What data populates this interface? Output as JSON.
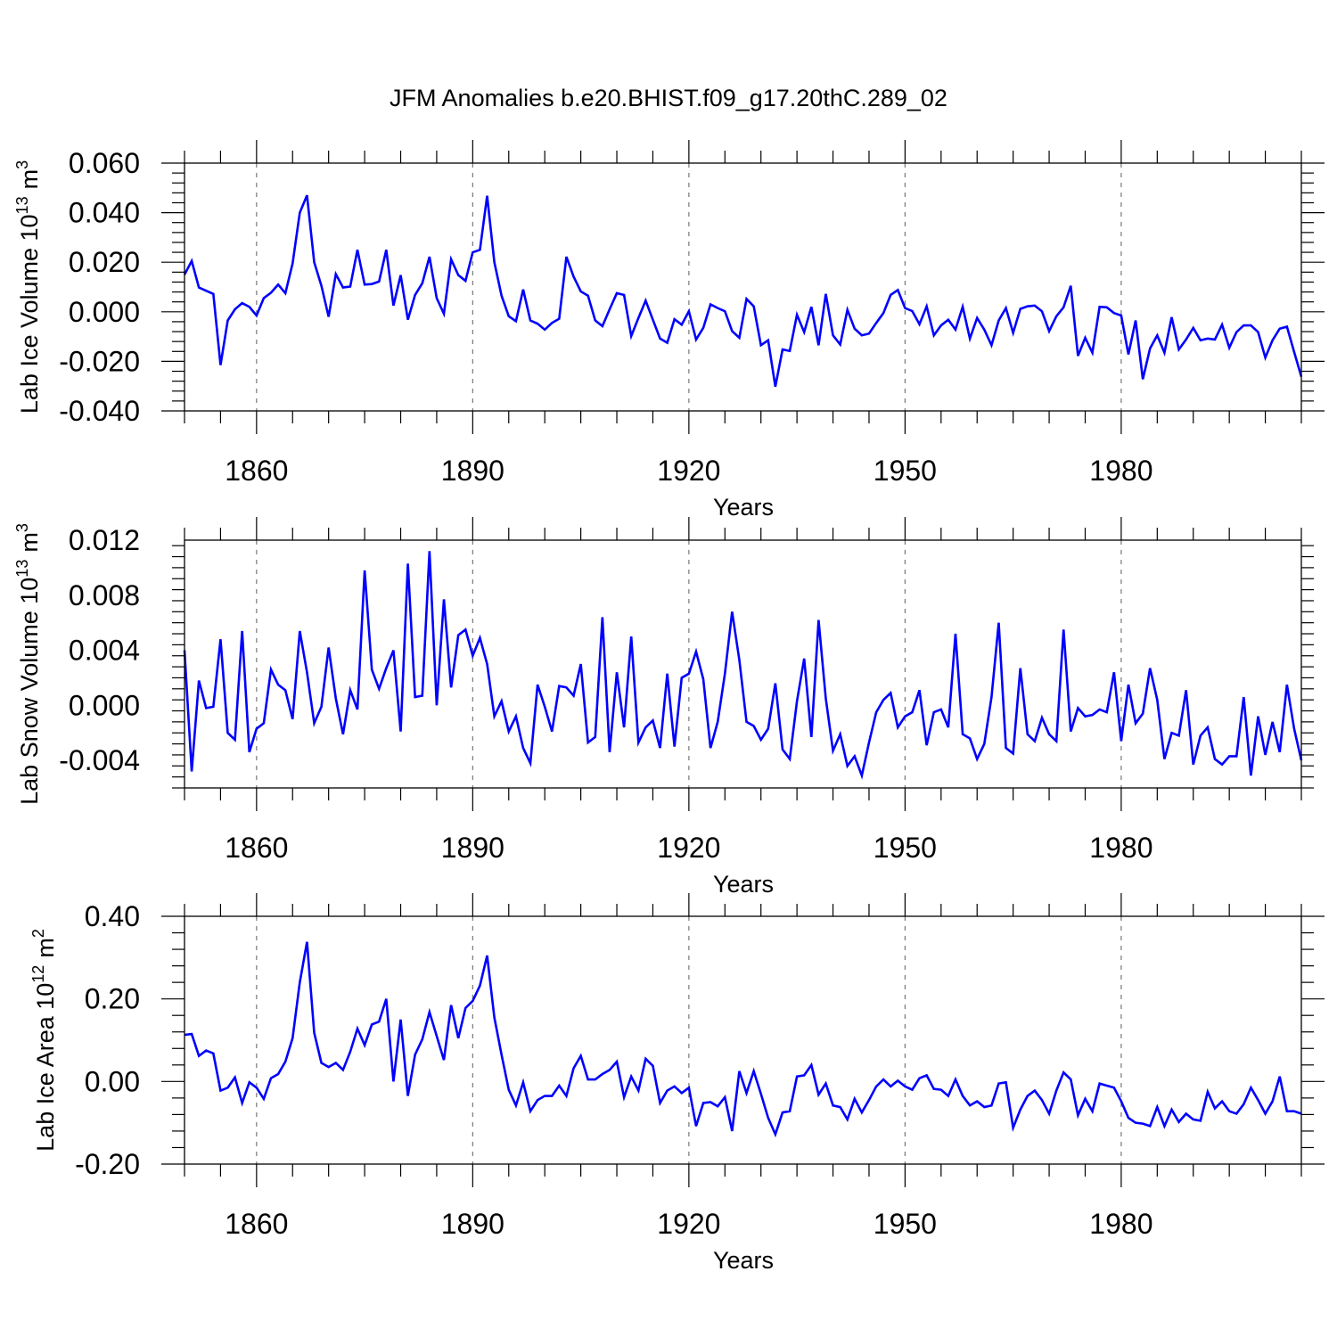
{
  "title": "JFM Anomalies b.e20.BHIST.f09_g17.20thC.289_02",
  "colors": {
    "line": "#0000ff",
    "axis": "#000000",
    "grid": "#777777"
  },
  "chart_data": [
    {
      "type": "line",
      "ylabel_main": "Lab Ice Volume 10",
      "ylabel_exp": "13",
      "ylabel_unit": "m",
      "ylabel_unit_exp": "3",
      "xlabel": "Years",
      "xlim": [
        1850,
        2005
      ],
      "ylim": [
        -0.04,
        0.06
      ],
      "yticks": [
        -0.04,
        -0.02,
        0.0,
        0.02,
        0.04,
        0.06
      ],
      "ytick_labels": [
        "-0.040",
        "-0.020",
        "0.000",
        "0.020",
        "0.040",
        "0.060"
      ],
      "xticks": [
        1860,
        1890,
        1920,
        1950,
        1980
      ],
      "xtick_labels": [
        "1860",
        "1890",
        "1920",
        "1950",
        "1980"
      ],
      "x_start": 1850,
      "values": [
        0.015,
        0.0205,
        0.0098,
        0.0085,
        0.0072,
        -0.0215,
        -0.0035,
        0.001,
        0.0035,
        0.002,
        -0.0015,
        0.0055,
        0.0077,
        0.011,
        0.0075,
        0.0195,
        0.04,
        0.047,
        0.02,
        0.0105,
        -0.002,
        0.0152,
        0.0098,
        0.0102,
        0.025,
        0.011,
        0.0112,
        0.0122,
        0.025,
        0.0025,
        0.0148,
        -0.0032,
        0.0068,
        0.0115,
        0.0222,
        0.0055,
        -0.0008,
        0.0212,
        0.0148,
        0.0125,
        0.024,
        0.025,
        0.0468,
        0.02,
        0.0065,
        -0.0018,
        -0.0038,
        0.009,
        -0.0035,
        -0.0048,
        -0.0072,
        -0.0045,
        -0.0028,
        0.0222,
        0.0142,
        0.0082,
        0.0065,
        -0.0035,
        -0.0058,
        0.001,
        0.0075,
        0.0068,
        -0.0098,
        -0.0025,
        0.0045,
        -0.0032,
        -0.0108,
        -0.0125,
        -0.003,
        -0.0052,
        0.0002,
        -0.0112,
        -0.0065,
        0.003,
        0.0015,
        0.0002,
        -0.0078,
        -0.0105,
        0.0052,
        0.0022,
        -0.0135,
        -0.0115,
        -0.0302,
        -0.0152,
        -0.0158,
        -0.0012,
        -0.0082,
        0.002,
        -0.0135,
        0.0072,
        -0.0095,
        -0.0132,
        0.0008,
        -0.0068,
        -0.0095,
        -0.0088,
        -0.0045,
        -0.0005,
        0.0068,
        0.0088,
        0.0015,
        0.0003,
        -0.005,
        0.0022,
        -0.0095,
        -0.0055,
        -0.0032,
        -0.0072,
        0.002,
        -0.0108,
        -0.0025,
        -0.0072,
        -0.0135,
        -0.0035,
        0.0015,
        -0.0085,
        0.0012,
        0.0022,
        0.0025,
        0.0002,
        -0.0078,
        -0.0018,
        0.0018,
        0.0105,
        -0.0178,
        -0.0105,
        -0.0165,
        0.002,
        0.0018,
        -0.0005,
        -0.0015,
        -0.0172,
        -0.0035,
        -0.0272,
        -0.0148,
        -0.0095,
        -0.0165,
        -0.0022,
        -0.0152,
        -0.0112,
        -0.0065,
        -0.0115,
        -0.0108,
        -0.0112,
        -0.0052,
        -0.0145,
        -0.0082,
        -0.0055,
        -0.0055,
        -0.0082,
        -0.0185,
        -0.0115,
        -0.0068,
        -0.006,
        -0.0162,
        -0.0262
      ]
    },
    {
      "type": "line",
      "ylabel_main": "Lab Snow Volume 10",
      "ylabel_exp": "13",
      "ylabel_unit": "m",
      "ylabel_unit_exp": "3",
      "xlabel": "Years",
      "xlim": [
        1850,
        2005
      ],
      "ylim": [
        -0.006,
        0.012
      ],
      "yticks": [
        -0.004,
        0.0,
        0.004,
        0.008,
        0.012
      ],
      "ytick_labels": [
        "-0.004",
        "0.000",
        "0.004",
        "0.008",
        "0.012"
      ],
      "xticks": [
        1860,
        1890,
        1920,
        1950,
        1980
      ],
      "xtick_labels": [
        "1860",
        "1890",
        "1920",
        "1950",
        "1980"
      ],
      "x_start": 1850,
      "values": [
        0.004,
        -0.0048,
        0.0018,
        -0.0002,
        -0.0001,
        0.0048,
        -0.002,
        -0.0025,
        0.0054,
        -0.0034,
        -0.0017,
        -0.0013,
        0.0026,
        0.0015,
        0.0011,
        -0.001,
        0.0054,
        0.0024,
        -0.0013,
        -0.0001,
        0.0042,
        0.0005,
        -0.0021,
        0.0011,
        -0.0003,
        0.0098,
        0.0026,
        0.0012,
        0.0027,
        0.004,
        -0.0019,
        0.0103,
        0.0006,
        0.0007,
        0.0112,
        0.0,
        0.0077,
        0.0013,
        0.0051,
        0.0055,
        0.0036,
        0.0049,
        0.003,
        -0.0008,
        0.0003,
        -0.0019,
        -0.0008,
        -0.0031,
        -0.0042,
        0.0015,
        -0.0001,
        -0.0019,
        0.0014,
        0.0013,
        0.0007,
        0.003,
        -0.0027,
        -0.0023,
        0.0064,
        -0.0034,
        0.0024,
        -0.0016,
        0.005,
        -0.0027,
        -0.0016,
        -0.0011,
        -0.0031,
        0.0023,
        -0.003,
        0.002,
        0.0023,
        0.0039,
        0.0019,
        -0.0031,
        -0.0012,
        0.0023,
        0.0068,
        0.0033,
        -0.0012,
        -0.0015,
        -0.0025,
        -0.0017,
        0.0016,
        -0.0032,
        -0.0039,
        0.0003,
        0.0034,
        -0.0023,
        0.0062,
        0.0005,
        -0.0033,
        -0.0021,
        -0.0044,
        -0.0037,
        -0.0051,
        -0.0027,
        -0.0005,
        0.0004,
        0.0009,
        -0.0016,
        -0.0008,
        -0.0005,
        0.0011,
        -0.0029,
        -0.0005,
        -0.0003,
        -0.0016,
        0.0052,
        -0.0021,
        -0.0024,
        -0.0039,
        -0.0028,
        0.0006,
        0.006,
        -0.0031,
        -0.0035,
        0.0027,
        -0.0021,
        -0.0026,
        -0.0009,
        -0.0021,
        -0.0026,
        0.0055,
        -0.0019,
        -0.0002,
        -0.0008,
        -0.0007,
        -0.0003,
        -0.0005,
        0.0024,
        -0.0026,
        0.0015,
        -0.0013,
        -0.0006,
        0.0027,
        0.0004,
        -0.0039,
        -0.002,
        -0.0022,
        0.0011,
        -0.0043,
        -0.0022,
        -0.0016,
        -0.0039,
        -0.0043,
        -0.0037,
        -0.0037,
        0.0006,
        -0.0051,
        -0.0008,
        -0.0036,
        -0.0012,
        -0.0034,
        0.0015,
        -0.0017,
        -0.004
      ]
    },
    {
      "type": "line",
      "ylabel_main": "Lab Ice Area 10",
      "ylabel_exp": "12",
      "ylabel_unit": "m",
      "ylabel_unit_exp": "2",
      "xlabel": "Years",
      "xlim": [
        1850,
        2005
      ],
      "ylim": [
        -0.2,
        0.4
      ],
      "yticks": [
        -0.2,
        0.0,
        0.2,
        0.4
      ],
      "ytick_labels": [
        "-0.20",
        "0.00",
        "0.20",
        "0.40"
      ],
      "xticks": [
        1860,
        1890,
        1920,
        1950,
        1980
      ],
      "xtick_labels": [
        "1860",
        "1890",
        "1920",
        "1950",
        "1980"
      ],
      "x_start": 1850,
      "values": [
        0.113,
        0.115,
        0.062,
        0.075,
        0.068,
        -0.022,
        -0.015,
        0.01,
        -0.052,
        -0.002,
        -0.015,
        -0.042,
        0.008,
        0.018,
        0.048,
        0.105,
        0.24,
        0.338,
        0.118,
        0.045,
        0.035,
        0.045,
        0.028,
        0.072,
        0.128,
        0.088,
        0.138,
        0.145,
        0.2,
        0.0,
        0.15,
        -0.035,
        0.065,
        0.102,
        0.168,
        0.11,
        0.052,
        0.185,
        0.105,
        0.178,
        0.195,
        0.232,
        0.305,
        0.155,
        0.065,
        -0.02,
        -0.058,
        -0.002,
        -0.072,
        -0.045,
        -0.035,
        -0.035,
        -0.01,
        -0.035,
        0.032,
        0.062,
        0.005,
        0.005,
        0.018,
        0.028,
        0.048,
        -0.038,
        0.012,
        -0.022,
        0.055,
        0.038,
        -0.052,
        -0.022,
        -0.012,
        -0.028,
        -0.015,
        -0.108,
        -0.052,
        -0.05,
        -0.06,
        -0.038,
        -0.12,
        0.025,
        -0.028,
        0.025,
        -0.03,
        -0.088,
        -0.128,
        -0.075,
        -0.072,
        0.012,
        0.015,
        0.04,
        -0.032,
        -0.005,
        -0.058,
        -0.062,
        -0.092,
        -0.042,
        -0.075,
        -0.045,
        -0.012,
        0.005,
        -0.012,
        0.002,
        -0.012,
        -0.02,
        0.008,
        0.015,
        -0.018,
        -0.02,
        -0.035,
        0.005,
        -0.035,
        -0.058,
        -0.048,
        -0.062,
        -0.058,
        -0.005,
        -0.002,
        -0.112,
        -0.068,
        -0.035,
        -0.022,
        -0.045,
        -0.078,
        -0.022,
        0.022,
        0.005,
        -0.082,
        -0.042,
        -0.072,
        -0.005,
        -0.01,
        -0.015,
        -0.048,
        -0.088,
        -0.1,
        -0.102,
        -0.108,
        -0.062,
        -0.108,
        -0.068,
        -0.098,
        -0.078,
        -0.092,
        -0.095,
        -0.025,
        -0.065,
        -0.048,
        -0.072,
        -0.078,
        -0.055,
        -0.015,
        -0.045,
        -0.078,
        -0.048,
        0.012,
        -0.072,
        -0.072,
        -0.078
      ]
    }
  ]
}
